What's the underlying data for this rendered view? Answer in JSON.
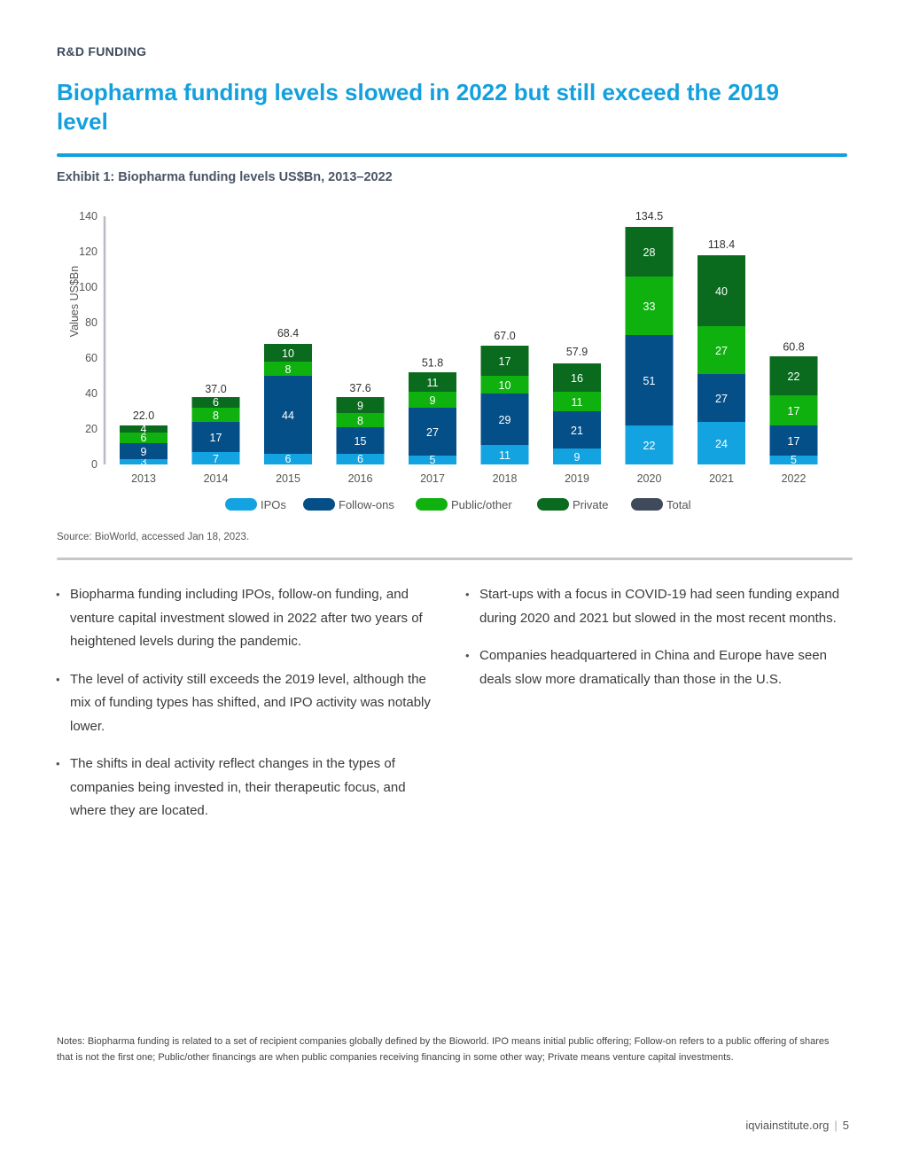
{
  "header": {
    "section_label": "R&D FUNDING",
    "headline": "Biopharma funding levels slowed in 2022 but still exceed the 2019 level"
  },
  "exhibit": {
    "title": "Exhibit 1: Biopharma funding levels US$Bn, 2013–2022",
    "source": "Source: BioWorld, accessed Jan 18, 2023."
  },
  "chart_data": {
    "type": "bar",
    "stacked": true,
    "categories": [
      "2013",
      "2014",
      "2015",
      "2016",
      "2017",
      "2018",
      "2019",
      "2020",
      "2021",
      "2022"
    ],
    "series": [
      {
        "name": "IPOs",
        "values": [
          3,
          7,
          6,
          6,
          5,
          11,
          9,
          22,
          24,
          5
        ],
        "color": "#12a3e0"
      },
      {
        "name": "Follow-ons",
        "values": [
          9,
          17,
          44,
          15,
          27,
          29,
          21,
          51,
          27,
          17
        ],
        "color": "#054f88"
      },
      {
        "name": "Public/other",
        "values": [
          6,
          8,
          8,
          8,
          9,
          10,
          11,
          33,
          27,
          17
        ],
        "color": "#0fb10f"
      },
      {
        "name": "Private",
        "values": [
          4,
          6,
          10,
          9,
          11,
          17,
          16,
          28,
          40,
          22
        ],
        "color": "#0a6b1e"
      }
    ],
    "totals": {
      "name": "Total",
      "values": [
        "22.0",
        "37.0",
        "68.4",
        "37.6",
        "51.8",
        "67.0",
        "57.9",
        "134.5",
        "118.4",
        "60.8"
      ],
      "color": "#3f4a5c"
    },
    "ylabel": "Values US$Bn",
    "ylim": [
      0,
      140
    ],
    "yticks": [
      "0",
      "20",
      "40",
      "60",
      "80",
      "100",
      "120",
      "140"
    ],
    "grid": false,
    "legend": "bottom"
  },
  "bullets_left": [
    "Biopharma funding including IPOs, follow-on funding, and venture capital investment slowed in 2022 after two years of heightened levels during the pandemic.",
    "The level of activity still exceeds the 2019 level, although the mix of funding types has shifted, and IPO activity was notably lower.",
    "The shifts in deal activity reflect changes in the types of companies being invested in, their therapeutic focus, and where they are located."
  ],
  "bullets_right": [
    "Start-ups with a focus in COVID-19 had seen funding expand during 2020 and 2021 but slowed in the most recent months.",
    "Companies headquartered in China and Europe have seen deals slow more dramatically than those in the U.S."
  ],
  "notes": "Notes: Biopharma funding is related to a set of recipient companies globally defined by the Bioworld. IPO means initial public offering; Follow-on refers to a public offering of shares that is not the first one; Public/other financings are when public companies receiving financing in some other way; Private means venture capital investments.",
  "footer": {
    "site": "iqviainstitute.org",
    "separator": "|",
    "page_number": "5"
  },
  "colors": {
    "headline": "#13a0de",
    "rule_blue": "#13a0de",
    "rule_grey": "#c4c6c9",
    "axis": "#b8bcc2",
    "tick_text": "#555555",
    "label_light": "#ffffff"
  }
}
